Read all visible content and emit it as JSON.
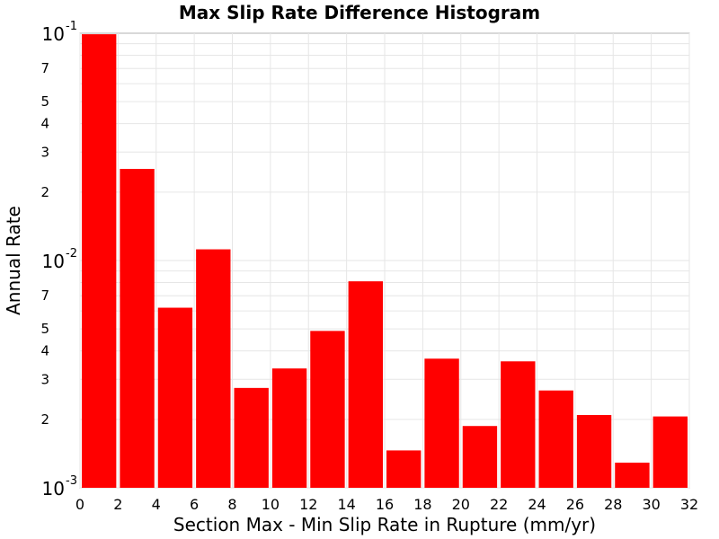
{
  "chart_data": {
    "type": "bar",
    "title": "Max Slip Rate Difference Histogram",
    "xlabel": "Section Max - Min Slip Rate in Rupture (mm/yr)",
    "ylabel": "Annual Rate",
    "x_scale": "linear",
    "y_scale": "log",
    "xlim": [
      0,
      32
    ],
    "ylim": [
      0.001,
      0.1
    ],
    "grid": true,
    "bar_color": "#ff0000",
    "bin_width": 2,
    "bin_starts": [
      0,
      2,
      4,
      6,
      8,
      10,
      12,
      14,
      16,
      18,
      20,
      22,
      24,
      26,
      28,
      30
    ],
    "values": [
      0.099,
      0.0253,
      0.0062,
      0.0112,
      0.00275,
      0.00335,
      0.0049,
      0.0081,
      0.00146,
      0.0037,
      0.00187,
      0.0036,
      0.00268,
      0.00209,
      0.00129,
      0.00206
    ],
    "x_ticks": [
      "0",
      "2",
      "4",
      "6",
      "8",
      "10",
      "12",
      "14",
      "16",
      "18",
      "20",
      "22",
      "24",
      "26",
      "28",
      "30",
      "32"
    ],
    "y_decade_labels": [
      {
        "value": 0.1,
        "base": "10",
        "exp": "-1"
      },
      {
        "value": 0.01,
        "base": "10",
        "exp": "-2"
      },
      {
        "value": 0.001,
        "base": "10",
        "exp": "-3"
      }
    ],
    "y_minor_labels": [
      {
        "value": 0.07,
        "label": "7"
      },
      {
        "value": 0.05,
        "label": "5"
      },
      {
        "value": 0.04,
        "label": "4"
      },
      {
        "value": 0.03,
        "label": "3"
      },
      {
        "value": 0.02,
        "label": "2"
      },
      {
        "value": 0.007,
        "label": "7"
      },
      {
        "value": 0.005,
        "label": "5"
      },
      {
        "value": 0.004,
        "label": "4"
      },
      {
        "value": 0.003,
        "label": "3"
      },
      {
        "value": 0.002,
        "label": "2"
      }
    ]
  }
}
